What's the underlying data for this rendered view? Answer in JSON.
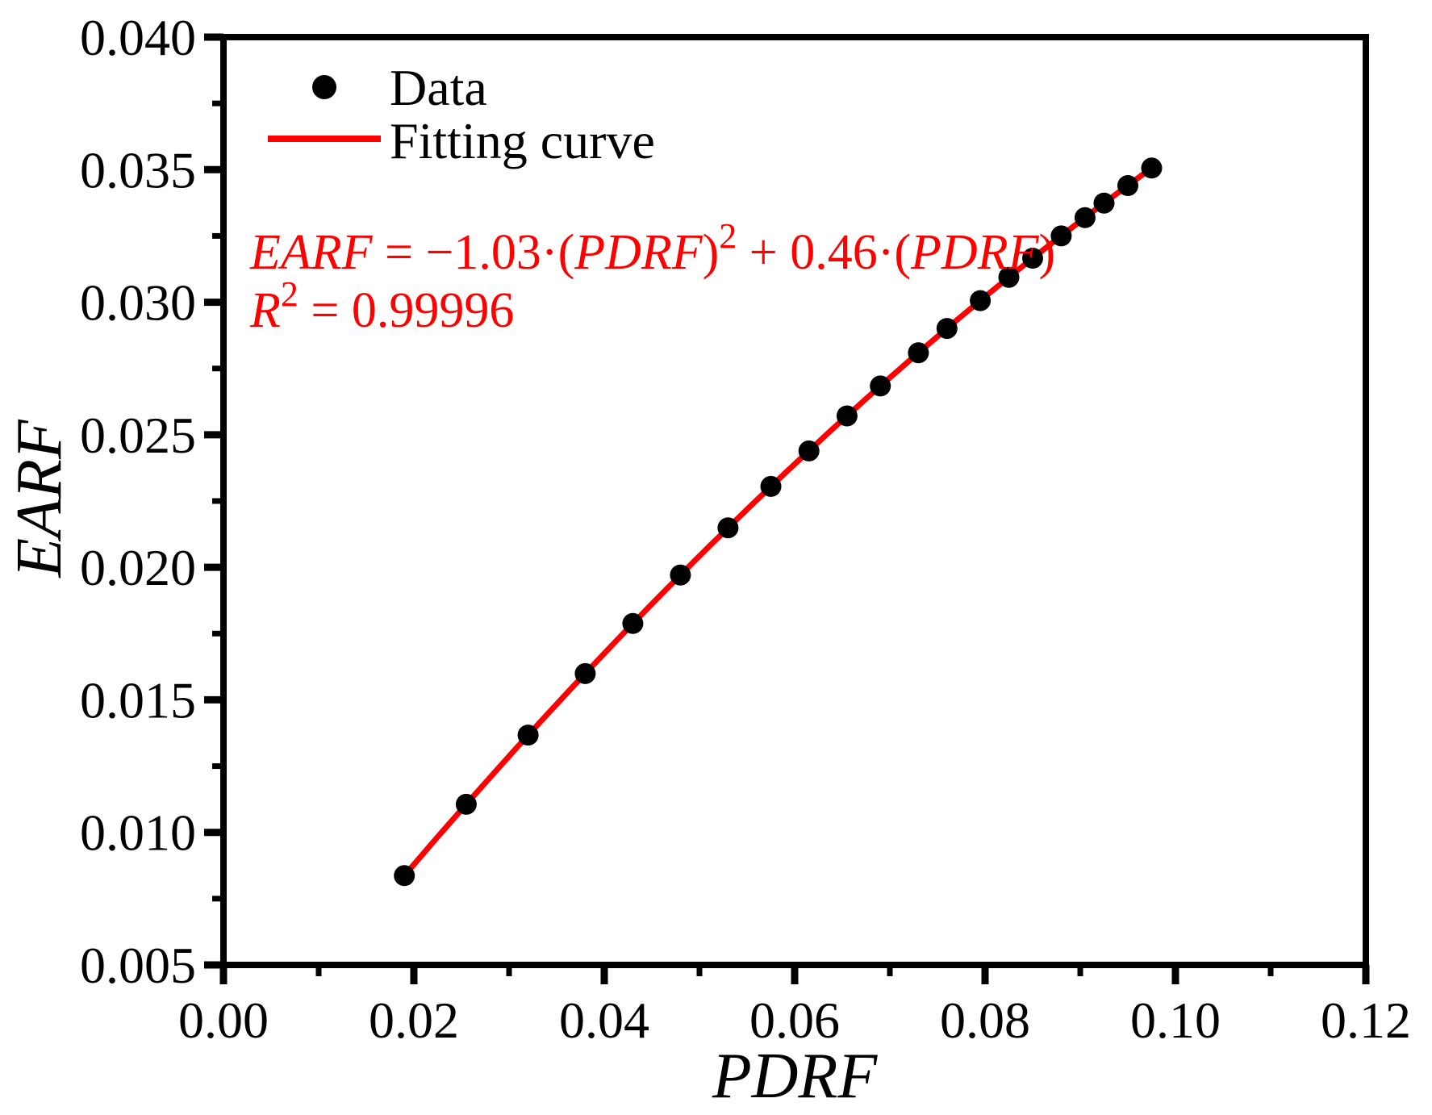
{
  "figure": {
    "background": "#ffffff",
    "frame_color": "#000000"
  },
  "chart_data": {
    "type": "scatter",
    "title": "",
    "xlabel": "PDRF",
    "ylabel": "EARF",
    "xlim": [
      0.0,
      0.12
    ],
    "ylim": [
      0.005,
      0.04
    ],
    "grid": false,
    "x_major_ticks": [
      0.0,
      0.02,
      0.04,
      0.06,
      0.08,
      0.1,
      0.12
    ],
    "x_tick_labels": [
      "0.00",
      "0.02",
      "0.04",
      "0.06",
      "0.08",
      "0.10",
      "0.12"
    ],
    "x_minor_ticks": [
      0.01,
      0.03,
      0.05,
      0.07,
      0.09,
      0.11
    ],
    "y_major_ticks": [
      0.005,
      0.01,
      0.015,
      0.02,
      0.025,
      0.03,
      0.035,
      0.04
    ],
    "y_tick_labels": [
      "0.005",
      "0.010",
      "0.015",
      "0.020",
      "0.025",
      "0.030",
      "0.035",
      "0.040"
    ],
    "y_minor_ticks": [
      0.0075,
      0.0125,
      0.0175,
      0.0225,
      0.0275,
      0.0325,
      0.0375
    ],
    "series": [
      {
        "name": "Data",
        "kind": "scatter",
        "marker": "dot",
        "color": "#000000",
        "points": [
          [
            0.019,
            0.00837
          ],
          [
            0.0255,
            0.01106
          ],
          [
            0.032,
            0.01367
          ],
          [
            0.038,
            0.01599
          ],
          [
            0.043,
            0.01788
          ],
          [
            0.048,
            0.01971
          ],
          [
            0.053,
            0.02149
          ],
          [
            0.0575,
            0.02305
          ],
          [
            0.0615,
            0.02439
          ],
          [
            0.0655,
            0.02571
          ],
          [
            0.069,
            0.02684
          ],
          [
            0.073,
            0.02809
          ],
          [
            0.076,
            0.02901
          ],
          [
            0.0795,
            0.03006
          ],
          [
            0.0825,
            0.03094
          ],
          [
            0.085,
            0.03166
          ],
          [
            0.088,
            0.0325
          ],
          [
            0.0905,
            0.03319
          ],
          [
            0.0925,
            0.03374
          ],
          [
            0.095,
            0.0344
          ],
          [
            0.0975,
            0.03506
          ]
        ]
      },
      {
        "name": "Fitting curve",
        "kind": "line",
        "color": "#ff0000",
        "fit": {
          "a": -1.03,
          "b": 0.46,
          "c": 0.0,
          "range": [
            0.019,
            0.0975
          ]
        }
      }
    ],
    "legend": {
      "position": "inside-top-left",
      "entries": [
        {
          "label": "Data",
          "marker": "dot",
          "color": "#000000"
        },
        {
          "label": "Fitting curve",
          "marker": "line",
          "color": "#ff0000"
        }
      ]
    },
    "annotation": {
      "color": "#ff0000",
      "equation_plain": "EARF = −1.03·(PDRF)² + 0.46·(PDRF)",
      "r_squared_plain": "R² = 0.99996",
      "equation_segments": [
        {
          "text": "EARF",
          "italic": true
        },
        {
          "text": " = −1.03·(",
          "italic": false
        },
        {
          "text": "PDRF",
          "italic": true
        },
        {
          "text": ")",
          "italic": false
        },
        {
          "text": "2",
          "sup": true
        },
        {
          "text": " + 0.46·(",
          "italic": false
        },
        {
          "text": "PDRF",
          "italic": true
        },
        {
          "text": ")",
          "italic": false
        }
      ],
      "r_squared_segments": [
        {
          "text": "R",
          "italic": true
        },
        {
          "text": "2",
          "sup": true
        },
        {
          "text": " = 0.99996",
          "italic": false
        }
      ]
    }
  }
}
